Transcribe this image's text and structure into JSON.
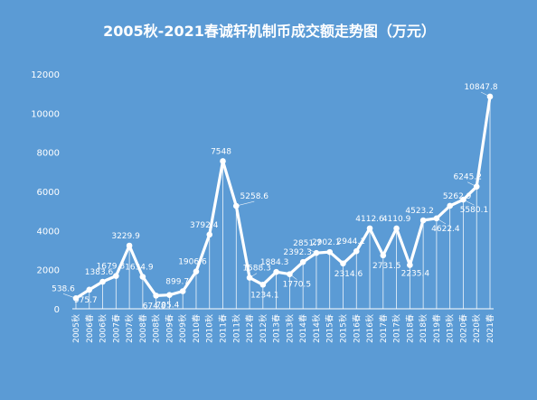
{
  "chart_data": {
    "type": "line",
    "title": "2005秋-2021春诚轩机制币成交额走势图（万元）",
    "xlabel": "",
    "ylabel": "",
    "ylim": [
      0,
      12000
    ],
    "yticks": [
      0,
      2000,
      4000,
      6000,
      8000,
      10000,
      12000
    ],
    "grid": "vertical",
    "legend": "none",
    "categories": [
      "2005秋",
      "2006春",
      "2006秋",
      "2007春",
      "2007秋",
      "2008春",
      "2008秋",
      "2009春",
      "2009秋",
      "2010春",
      "2010秋",
      "2011春",
      "2011秋",
      "2012春",
      "2012秋",
      "2013春",
      "2013秋",
      "2014春",
      "2014秋",
      "2015春",
      "2015秋",
      "2016春",
      "2016秋",
      "2017春",
      "2017秋",
      "2018春",
      "2018秋",
      "2019春",
      "2019秋",
      "2020春",
      "2020秋",
      "2021春"
    ],
    "xtick_labels": [
      "2005秋",
      "2006春",
      "2006秋",
      "2007春",
      "2007秋",
      "2008春",
      "2008秋",
      "2009春",
      "2009秋",
      "2010春",
      "2010秋",
      "2011春",
      "2011秋",
      "2012春",
      "2012秋",
      "2013春",
      "2013秋",
      "2014春",
      "2014秋",
      "2015春",
      "2015秋",
      "2016春",
      "2016秋",
      "2017春",
      "2017秋",
      "2018春",
      "2018秋",
      "2019春",
      "2019秋",
      "2020春",
      "2020秋",
      "2021春"
    ],
    "values": [
      538.6,
      975.7,
      1383.6,
      1679.8,
      3229.9,
      1634.9,
      674.8,
      705.4,
      899.7,
      1906.6,
      3792.4,
      7548,
      5258.6,
      1588.3,
      1234.1,
      1884.3,
      1770.5,
      2392.3,
      2851.7,
      2902.1,
      2314.6,
      2944.1,
      4112.6,
      2731.5,
      4110.9,
      2235.4,
      4523.2,
      4622.4,
      5262.9,
      5580.1,
      6245.2,
      10847.8
    ],
    "data_labels": [
      "538.6",
      "975.7",
      "1383.6",
      "1679.8",
      "3229.9",
      "1634.9",
      "674.8",
      "705.4",
      "899.7",
      "1906.6",
      "3792.4",
      "7548",
      "5258.6",
      "1588.3",
      "1234.1",
      "1884.3",
      "1770.5",
      "2392.3",
      "2851.7",
      "2902.1",
      "2314.6",
      "2944.1",
      "4112.6",
      "2731.5",
      "4110.9",
      "2235.4",
      "4523.2",
      "4622.4",
      "5262.9",
      "5580.1",
      "6245.2",
      "10847.8"
    ],
    "colors": {
      "background": "#5b9bd5",
      "line": "#ffffff",
      "text": "#ffffff"
    }
  }
}
